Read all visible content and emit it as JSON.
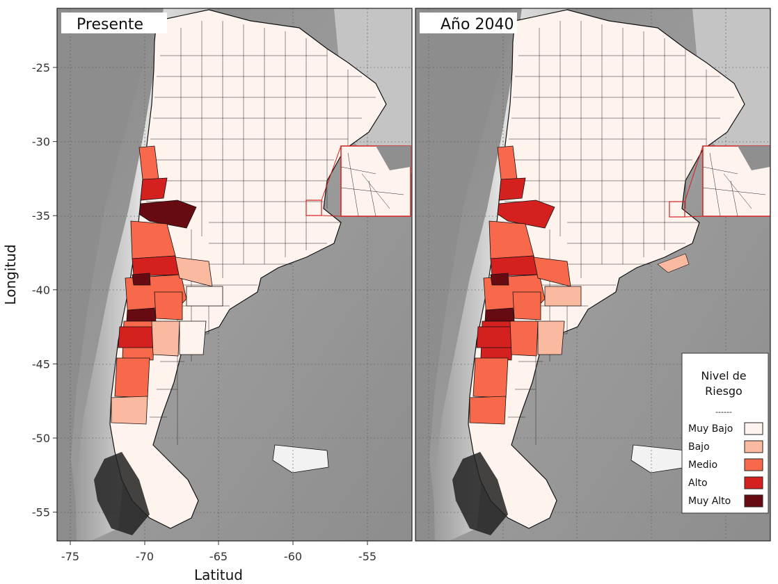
{
  "panels": [
    {
      "title": "Presente",
      "risk": [
        "medio",
        "alto",
        "muyalto",
        "medio",
        "alto",
        "medio",
        "muyalto",
        "medio",
        "alto",
        "muyalto",
        "medio",
        "bajo",
        "bajo",
        "muybajo",
        "medio",
        "bajo",
        "muybajo"
      ]
    },
    {
      "title": "Año 2040",
      "risk": [
        "medio",
        "alto",
        "alto",
        "medio",
        "alto",
        "medio",
        "muyalto",
        "alto",
        "alto",
        "muyalto",
        "medio",
        "medio",
        "medio",
        "bajo",
        "medio",
        "medio",
        "bajo"
      ]
    }
  ],
  "axes": {
    "xlabel": "Latitud",
    "ylabel": "Longitud",
    "x_ticks": [
      "-75",
      "-70",
      "-65",
      "-60",
      "-55"
    ],
    "y_ticks": [
      "-25",
      "-30",
      "-35",
      "-40",
      "-45",
      "-50",
      "-55"
    ],
    "x_values": [
      -75,
      -70,
      -65,
      -60,
      -55
    ],
    "y_values": [
      -25,
      -30,
      -35,
      -40,
      -45,
      -50,
      -55
    ]
  },
  "legend": {
    "title_line1": "Nivel de",
    "title_line2": "Riesgo",
    "separator": "------",
    "items": [
      {
        "key": "muybajo",
        "label": "Muy Bajo",
        "color": "#fff3ee"
      },
      {
        "key": "bajo",
        "label": "Bajo",
        "color": "#fbb99f"
      },
      {
        "key": "medio",
        "label": "Medio",
        "color": "#f7694a"
      },
      {
        "key": "alto",
        "label": "Alto",
        "color": "#d42120"
      },
      {
        "key": "muyalto",
        "label": "Muy Alto",
        "color": "#680a12"
      }
    ]
  },
  "colors": {
    "ocean": "#8f8f8f",
    "land_outside": "#bdbdbd",
    "andes": "#d8d8d8",
    "border": "#111111",
    "inset_border": "#d42120"
  }
}
